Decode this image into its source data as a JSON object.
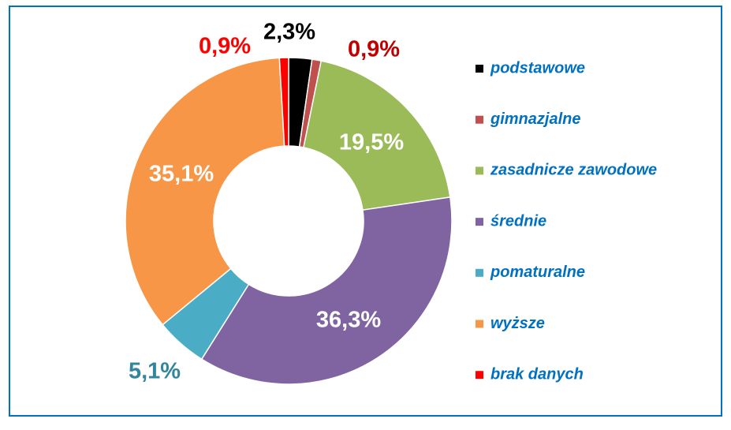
{
  "chart_data": {
    "type": "donut",
    "categories": [
      "podstawowe",
      "gimnazjalne",
      "zasadnicze zawodowe",
      "średnie",
      "pomaturalne",
      "wyższe",
      "brak danych"
    ],
    "values": [
      2.3,
      0.9,
      19.5,
      36.3,
      5.1,
      35.1,
      0.9
    ],
    "value_labels": [
      "2,3%",
      "0,9%",
      "19,5%",
      "36,3%",
      "5,1%",
      "35,1%",
      "0,9%"
    ],
    "colors": [
      "#000000",
      "#c0504d",
      "#9bbb59",
      "#8064a2",
      "#4bacc6",
      "#f79646",
      "#ff0000"
    ],
    "label_colors": [
      "#000000",
      "#c00000",
      "#ffffff",
      "#ffffff",
      "#31859c",
      "#ffffff",
      "#ff0000"
    ],
    "legend": "right"
  }
}
